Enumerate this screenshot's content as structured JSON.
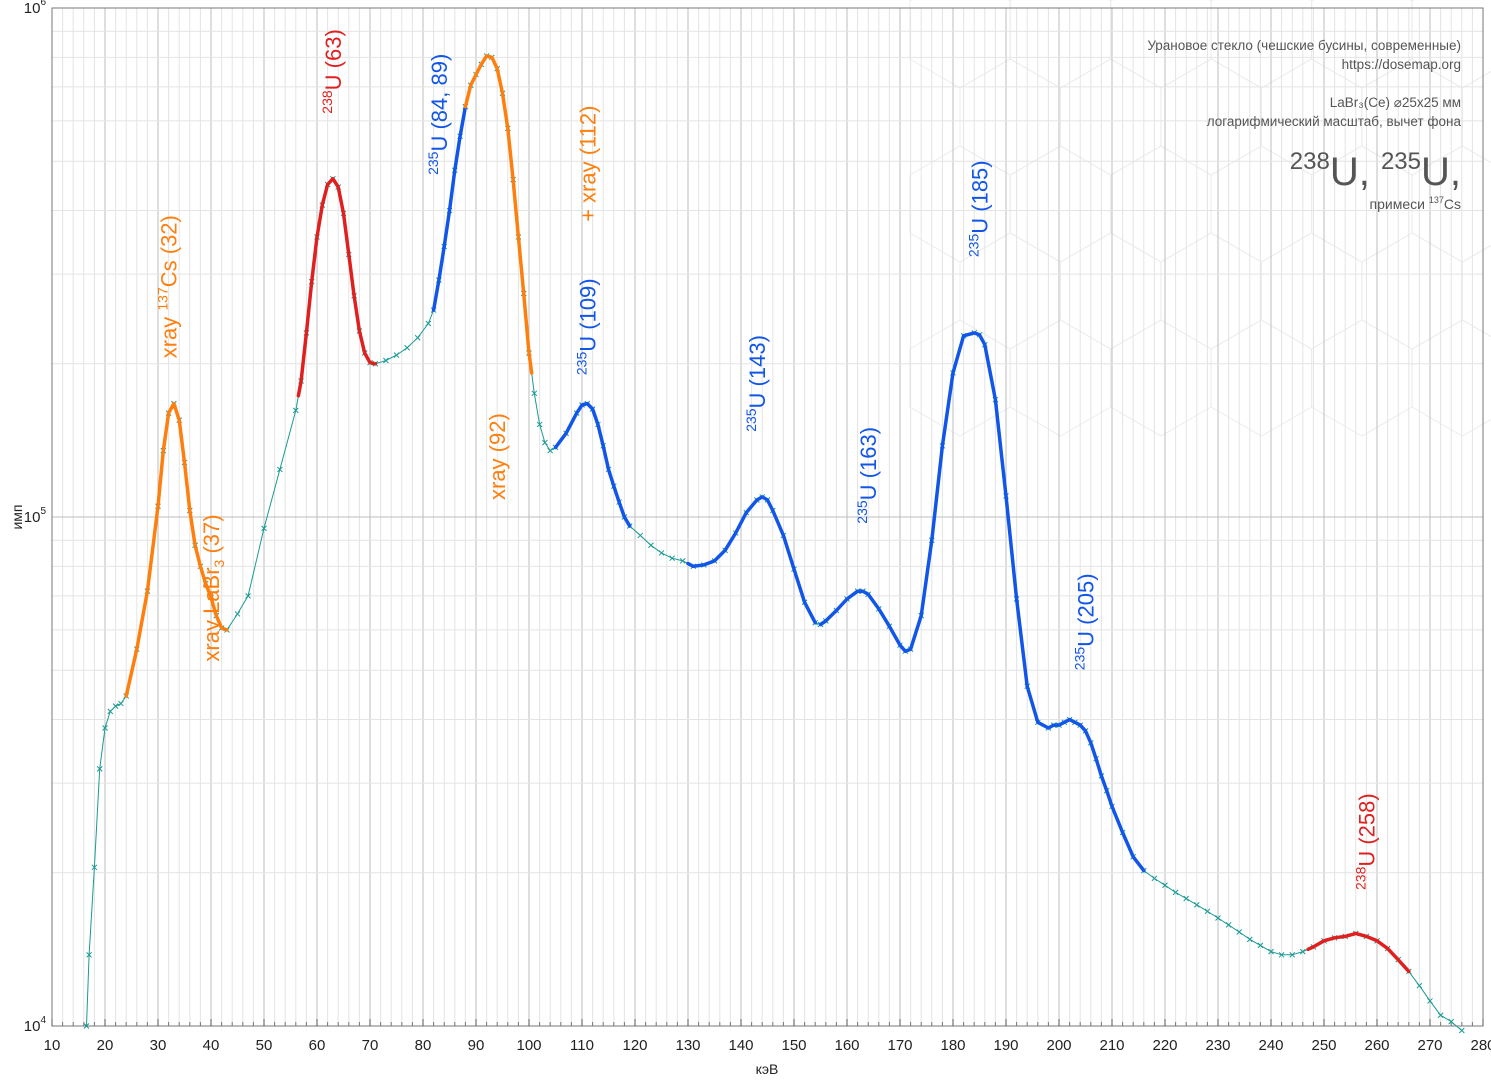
{
  "info": {
    "line1": "Урановое стекло (чешские бусины, современные)",
    "line2": "https://dosemap.org",
    "line3": "LaBr₃(Ce) ⌀25x25 мм",
    "line4": "логарифмический масштаб, вычет фона",
    "big_a_sup": "238",
    "big_a": "U, ",
    "big_b_sup": "235",
    "big_b": "U,",
    "small": "примеси ",
    "small_sup": "137",
    "small_tail": "Cs"
  },
  "colors": {
    "xray": "#ff7f0e",
    "u238": "#e0201f",
    "u235": "#1156e8",
    "baseline": "#1a9a94",
    "grid_major": "#bdbdbd",
    "grid_minor": "#e4e4e4"
  },
  "chart_data": {
    "type": "line",
    "xlabel": "кэВ",
    "ylabel": "имп",
    "xlim": [
      10,
      280
    ],
    "ylim": [
      10000,
      1000000
    ],
    "yscale": "log",
    "grid": true,
    "x_ticks": [
      "10",
      "20",
      "30",
      "40",
      "50",
      "60",
      "70",
      "80",
      "90",
      "100",
      "110",
      "120",
      "130",
      "140",
      "150",
      "160",
      "170",
      "180",
      "190",
      "200",
      "210",
      "220",
      "230",
      "240",
      "250",
      "260",
      "270",
      "280"
    ],
    "y_ticks": [
      {
        "base": "10",
        "exp": "4",
        "value": 10000
      },
      {
        "base": "10",
        "exp": "5",
        "value": 100000
      },
      {
        "base": "10",
        "exp": "6",
        "value": 1000000
      }
    ],
    "spectrum": {
      "x": [
        16.5,
        17,
        18,
        19,
        20,
        21,
        22,
        23,
        24,
        26,
        28,
        30,
        31,
        32,
        33,
        34,
        35,
        36,
        37,
        38,
        39,
        40,
        41,
        42,
        43,
        45,
        47,
        50,
        53,
        56,
        57,
        58,
        59,
        60,
        61,
        62,
        63,
        64,
        65,
        66,
        67,
        68,
        69,
        70,
        71,
        73,
        75,
        77,
        79,
        81,
        82,
        83,
        84,
        85,
        86,
        87,
        88,
        89,
        90,
        91,
        92,
        93,
        94,
        95,
        96,
        97,
        98,
        99,
        100,
        101,
        102,
        103,
        104,
        105,
        107,
        109,
        110,
        111,
        112,
        113,
        114,
        115,
        116,
        117,
        118,
        119,
        121,
        123,
        125,
        127,
        129,
        131,
        133,
        135,
        137,
        139,
        141,
        143,
        144,
        145,
        146,
        148,
        150,
        152,
        154,
        155,
        156,
        158,
        160,
        162,
        163,
        164,
        166,
        168,
        170,
        171,
        172,
        174,
        176,
        178,
        180,
        182,
        184,
        185,
        186,
        188,
        190,
        192,
        194,
        196,
        198,
        199,
        200,
        201,
        202,
        203,
        204,
        205,
        206,
        207,
        208,
        209,
        210,
        212,
        214,
        216,
        218,
        220,
        222,
        224,
        226,
        228,
        230,
        232,
        234,
        236,
        238,
        240,
        242,
        244,
        246,
        248,
        250,
        252,
        254,
        256,
        258,
        260,
        262,
        264,
        266,
        268,
        270,
        272,
        274,
        276
      ],
      "y": [
        10000,
        13800,
        20500,
        32000,
        38500,
        41500,
        42500,
        43000,
        44500,
        55000,
        71500,
        105000,
        135000,
        160000,
        167000,
        155000,
        128000,
        103000,
        88000,
        80000,
        74000,
        69500,
        64000,
        60500,
        60000,
        64500,
        70000,
        95000,
        124000,
        162000,
        185000,
        230000,
        290000,
        355000,
        410000,
        450000,
        462000,
        445000,
        395000,
        328000,
        272000,
        232000,
        210000,
        201000,
        200000,
        203000,
        208000,
        215000,
        225000,
        240000,
        255000,
        292000,
        340000,
        400000,
        480000,
        560000,
        640000,
        705000,
        740000,
        775000,
        805000,
        800000,
        760000,
        680000,
        580000,
        460000,
        355000,
        275000,
        210000,
        175000,
        152000,
        140000,
        135000,
        137000,
        146000,
        160000,
        166000,
        167000,
        163000,
        152000,
        138000,
        124000,
        115000,
        107000,
        100000,
        96000,
        92000,
        88000,
        85000,
        83000,
        82000,
        80000,
        80500,
        82000,
        86000,
        93000,
        102000,
        108000,
        109500,
        108000,
        103000,
        92000,
        79000,
        68000,
        62000,
        61500,
        62500,
        65500,
        69000,
        71500,
        71500,
        70500,
        66000,
        61000,
        56000,
        54500,
        55000,
        64000,
        90000,
        138000,
        192000,
        227000,
        230000,
        228000,
        218000,
        170000,
        110000,
        69000,
        46500,
        39500,
        38500,
        39000,
        39000,
        39500,
        40000,
        39500,
        39000,
        38000,
        36000,
        33500,
        31000,
        29000,
        27000,
        24000,
        21500,
        20200,
        19500,
        18900,
        18300,
        17800,
        17300,
        16800,
        16300,
        15800,
        15300,
        14800,
        14400,
        14000,
        13800,
        13800,
        14000,
        14300,
        14700,
        14900,
        15000,
        15200,
        15000,
        14700,
        14200,
        13500,
        12800,
        12000,
        11200,
        10500,
        10200,
        9800
      ]
    },
    "highlights": [
      {
        "from": 24,
        "to": 43,
        "color": "xray"
      },
      {
        "from": 56.5,
        "to": 71,
        "color": "u238"
      },
      {
        "from": 82,
        "to": 88,
        "color": "u235"
      },
      {
        "from": 88,
        "to": 100.5,
        "color": "xray"
      },
      {
        "from": 105,
        "to": 119,
        "color": "u235"
      },
      {
        "from": 130,
        "to": 154,
        "color": "u235"
      },
      {
        "from": 155,
        "to": 216,
        "color": "u235"
      },
      {
        "from": 247,
        "to": 266,
        "color": "u238"
      }
    ],
    "annotations": [
      {
        "x": 32,
        "y": 205000,
        "color": "xray",
        "pre": "xray  ",
        "sup": "137",
        "text": "Cs (32)"
      },
      {
        "x": 40,
        "y": 52000,
        "color": "xray",
        "pre": "",
        "sup": "",
        "text": "xray LaBr",
        "sub": "3",
        "tail": " (37)"
      },
      {
        "x": 63,
        "y": 620000,
        "color": "u238",
        "pre": "",
        "sup": "238",
        "text": "U (63)"
      },
      {
        "x": 83,
        "y": 470000,
        "color": "u235",
        "pre": "",
        "sup": "235",
        "text": "U (84, 89)"
      },
      {
        "x": 94,
        "y": 108000,
        "color": "xray",
        "pre": "",
        "sup": "",
        "text": "xray (92)"
      },
      {
        "x": 111,
        "y": 190000,
        "color": "u235",
        "pre": "",
        "sup": "235",
        "text": "U (109)"
      },
      {
        "x": 111,
        "y": 380000,
        "color": "xray",
        "pre": "",
        "sup": "",
        "text": "+ xray (112)"
      },
      {
        "x": 143,
        "y": 147000,
        "color": "u235",
        "pre": "",
        "sup": "235",
        "text": "U (143)"
      },
      {
        "x": 164,
        "y": 97000,
        "color": "u235",
        "pre": "",
        "sup": "235",
        "text": "U (163)"
      },
      {
        "x": 185,
        "y": 324000,
        "color": "u235",
        "pre": "",
        "sup": "235",
        "text": "U (185)"
      },
      {
        "x": 205,
        "y": 50000,
        "color": "u235",
        "pre": "",
        "sup": "235",
        "text": "U (205)"
      },
      {
        "x": 258,
        "y": 18500,
        "color": "u238",
        "pre": "",
        "sup": "238",
        "text": "U (258)"
      }
    ]
  }
}
